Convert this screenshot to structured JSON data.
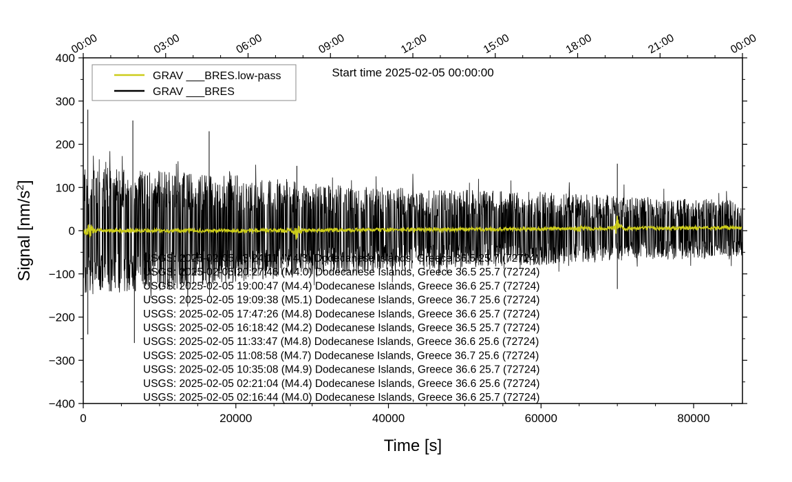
{
  "chart_data": {
    "type": "line",
    "title": "Start time 2025-02-05 00:00:00",
    "xlabel": "Time [s]",
    "ylabel": "Signal [nm/s",
    "ylabel_sup": "2",
    "ylabel_close": "]",
    "xlim": [
      0,
      86400
    ],
    "ylim": [
      -400,
      400
    ],
    "x_ticks": [
      0,
      20000,
      40000,
      60000,
      80000
    ],
    "x_tick_labels": [
      "0",
      "20000",
      "40000",
      "60000",
      "80000"
    ],
    "y_ticks": [
      400,
      300,
      200,
      100,
      0,
      -100,
      -200,
      -300,
      -400
    ],
    "y_tick_labels": [
      "400",
      "300",
      "200",
      "100",
      "0",
      "−100",
      "−200",
      "−300",
      "−400"
    ],
    "top_axis_ticks_s": [
      0,
      10800,
      21600,
      32400,
      43200,
      54000,
      64800,
      75600,
      86400
    ],
    "top_axis_labels": [
      "00:00",
      "03:00",
      "06:00",
      "09:00",
      "12:00",
      "15:00",
      "18:00",
      "21:00",
      "00:00"
    ],
    "legend": [
      {
        "label": "GRAV ___BRES.low-pass",
        "color": "#cccc1a"
      },
      {
        "label": "GRAV ___BRES",
        "color": "#000000"
      }
    ],
    "series": [
      {
        "name": "GRAV ___BRES",
        "color": "#000000",
        "description": "Raw gravimeter residual signal, dense noise",
        "envelope": {
          "x": [
            0,
            10000,
            20000,
            30000,
            40000,
            50000,
            60000,
            70000,
            80000,
            86400
          ],
          "upper": [
            150,
            140,
            130,
            110,
            100,
            95,
            90,
            80,
            75,
            70
          ],
          "lower": [
            -150,
            -140,
            -120,
            -105,
            -95,
            -85,
            -80,
            -70,
            -65,
            -60
          ]
        },
        "spikes": [
          {
            "x": 600,
            "y": 280
          },
          {
            "x": 600,
            "y": -240
          },
          {
            "x": 6500,
            "y": 255
          },
          {
            "x": 6700,
            "y": -260
          },
          {
            "x": 16500,
            "y": 230
          },
          {
            "x": 28000,
            "y": 150
          },
          {
            "x": 70000,
            "y": 155
          },
          {
            "x": 70000,
            "y": -135
          }
        ]
      },
      {
        "name": "GRAV ___BRES.low-pass",
        "color": "#cccc1a",
        "description": "Low-pass filtered signal near zero with event bursts",
        "baseline": {
          "x": [
            0,
            20000,
            40000,
            60000,
            86400
          ],
          "y": [
            0,
            0,
            2,
            4,
            7
          ]
        },
        "bursts": [
          {
            "x": 800,
            "amplitude": 40
          },
          {
            "x": 28000,
            "amplitude": 30
          },
          {
            "x": 65000,
            "amplitude": 12
          },
          {
            "x": 70000,
            "amplitude": 32
          }
        ]
      }
    ],
    "annotations": [
      "USGS: 2025-02-05 23:24:11 (M4.3) Dodecanese Islands, Greece 36.5 25.7 (72724)",
      "USGS: 2025-02-05 20:27:46 (M4.0) Dodecanese Islands, Greece 36.5 25.7 (72724)",
      "USGS: 2025-02-05 19:00:47 (M4.4) Dodecanese Islands, Greece 36.6 25.7 (72724)",
      "USGS: 2025-02-05 19:09:38 (M5.1) Dodecanese Islands, Greece 36.7 25.6 (72724)",
      "USGS: 2025-02-05 17:47:26 (M4.8) Dodecanese Islands, Greece 36.6 25.7 (72724)",
      "USGS: 2025-02-05 16:18:42 (M4.2) Dodecanese Islands, Greece 36.5 25.7 (72724)",
      "USGS: 2025-02-05 11:33:47 (M4.8) Dodecanese Islands, Greece 36.6 25.6 (72724)",
      "USGS: 2025-02-05 11:08:58 (M4.7) Dodecanese Islands, Greece 36.7 25.6 (72724)",
      "USGS: 2025-02-05 10:35:08 (M4.9) Dodecanese Islands, Greece 36.6 25.7 (72724)",
      "USGS: 2025-02-05 02:21:04 (M4.4) Dodecanese Islands, Greece 36.6 25.6 (72724)",
      "USGS: 2025-02-05 02:16:44 (M4.0) Dodecanese Islands, Greece 36.6 25.7 (72724)"
    ]
  }
}
